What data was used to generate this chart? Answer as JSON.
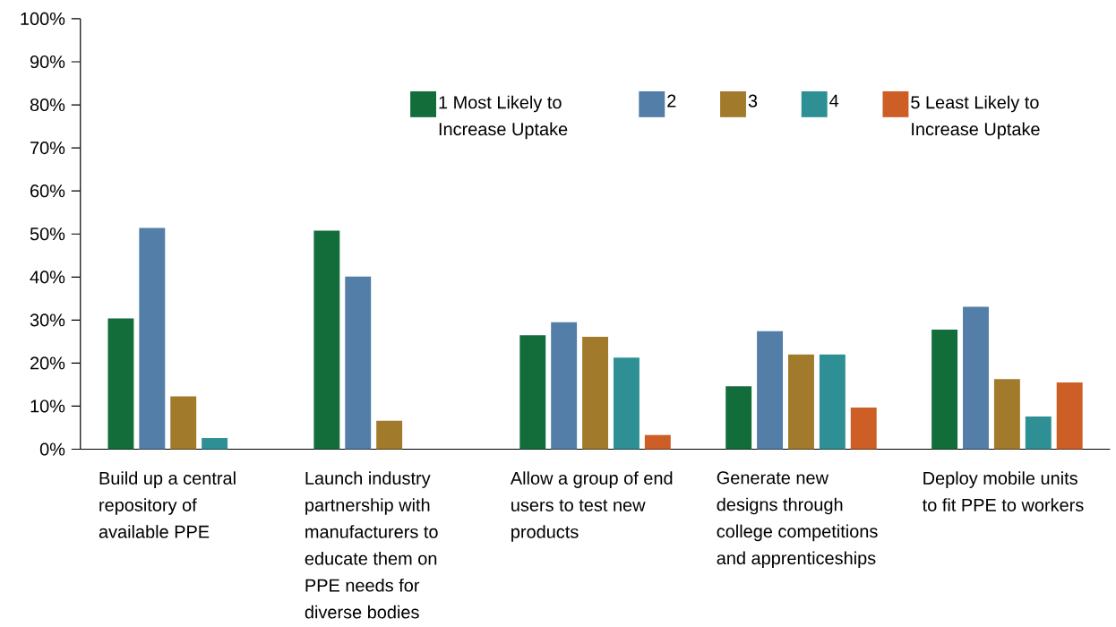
{
  "chart_data": {
    "type": "bar",
    "categories": [
      "Build up a central repository of available PPE",
      "Launch industry partnership with manufacturers to educate them on PPE needs for diverse bodies",
      "Allow a group of end users to test new products",
      "Generate new designs through college competitions and apprenticeships",
      "Deploy mobile units to fit PPE to workers"
    ],
    "series": [
      {
        "name": "1 Most Likely to Increase Uptake",
        "color": "#136d3b",
        "values": [
          30.4,
          50.8,
          26.5,
          14.6,
          27.8
        ]
      },
      {
        "name": "2",
        "color": "#527ea8",
        "values": [
          51.4,
          40.1,
          29.5,
          27.4,
          33.1
        ]
      },
      {
        "name": "3",
        "color": "#a27a2c",
        "values": [
          12.3,
          6.6,
          26.1,
          22.0,
          16.3
        ]
      },
      {
        "name": "4",
        "color": "#2e9094",
        "values": [
          2.6,
          null,
          21.3,
          22.0,
          7.6
        ]
      },
      {
        "name": "5 Least Likely to Increase Uptake",
        "color": "#cc5e26",
        "values": [
          null,
          null,
          3.3,
          9.7,
          15.5
        ]
      }
    ],
    "ylim": [
      0,
      100
    ],
    "yticks": [
      {
        "value": 0,
        "label": "0%"
      },
      {
        "value": 10,
        "label": "10%"
      },
      {
        "value": 20,
        "label": "20%"
      },
      {
        "value": 30,
        "label": "30%"
      },
      {
        "value": 40,
        "label": "40%"
      },
      {
        "value": 50,
        "label": "50%"
      },
      {
        "value": 60,
        "label": "60%"
      },
      {
        "value": 70,
        "label": "70%"
      },
      {
        "value": 80,
        "label": "80%"
      },
      {
        "value": 90,
        "label": "90%"
      },
      {
        "value": 100,
        "label": "100%"
      }
    ],
    "legend": "top right"
  }
}
